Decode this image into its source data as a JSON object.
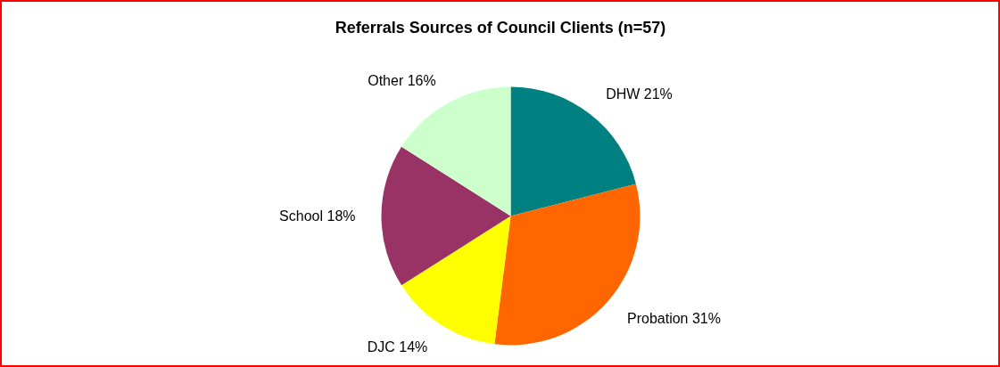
{
  "chart_data": {
    "type": "pie",
    "title": "Referrals Sources of Council Clients (n=57)",
    "categories": [
      "DHW",
      "Probation",
      "DJC",
      "School",
      "Other"
    ],
    "values": [
      21,
      31,
      14,
      18,
      16
    ],
    "value_labels": [
      "21%",
      "31%",
      "14%",
      "18%",
      "16%"
    ],
    "colors": [
      "#008080",
      "#ff6600",
      "#ffff00",
      "#993366",
      "#ccffcc"
    ]
  }
}
